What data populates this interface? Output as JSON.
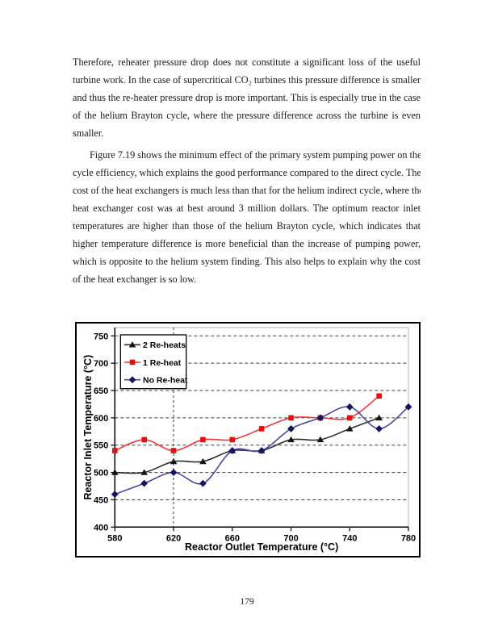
{
  "page": {
    "paragraph1_lines": [
      "Therefore, reheater pressure drop does not constitute a significant loss of the useful",
      "turbine work.  In the case of supercritical CO₂ turbines this pressure difference is smaller",
      "and thus the re-heater pressure drop is more important.  This is especially true in the case",
      "of the helium Brayton cycle, where the pressure difference across the turbine is even",
      "smaller."
    ],
    "paragraph2_lines": [
      "Figure 7.19 shows the minimum effect of the primary system pumping power on the",
      "cycle efficiency, which explains the good performance compared to the direct cycle.  The",
      "cost of the heat exchangers is much less than that for the helium indirect cycle, where the",
      "heat exchanger cost was at best around 3 million dollars.  The optimum reactor inlet",
      "temperatures are higher than those of the helium Brayton cycle, which indicates that",
      "higher temperature difference is more beneficial than the increase of pumping power,",
      "which is opposite to the helium system finding.  This also helps to explain why the cost",
      "of the heat exchanger is so low."
    ],
    "page_number": "179"
  },
  "chart_data": {
    "type": "line",
    "xlabel": "Reactor Outlet Temperature (°C)",
    "ylabel": "Reactor Inlet Temperature (°C)",
    "xlim": [
      580,
      780
    ],
    "ylim": [
      400,
      750
    ],
    "x_ticks": [
      580,
      620,
      660,
      700,
      740,
      780
    ],
    "y_ticks": [
      400,
      450,
      500,
      550,
      600,
      650,
      700,
      750
    ],
    "grid": "horizontal-dashed",
    "vline_x": 620,
    "legend_position": "top-left",
    "series": [
      {
        "name": "2 Re-heats",
        "marker": "triangle",
        "line_color": "#2e2e2e",
        "marker_color": "#141414",
        "x": [
          580,
          600,
          620,
          640,
          660,
          680,
          700,
          720,
          740,
          760
        ],
        "values": [
          500,
          500,
          520,
          520,
          540,
          540,
          560,
          560,
          580,
          600
        ]
      },
      {
        "name": "1 Re-heat",
        "marker": "square",
        "line_color": "#f03636",
        "marker_color": "#e60f0f",
        "x": [
          580,
          600,
          620,
          640,
          660,
          680,
          700,
          720,
          740,
          760
        ],
        "values": [
          540,
          560,
          540,
          560,
          560,
          580,
          600,
          600,
          600,
          640
        ]
      },
      {
        "name": "No Re-heat",
        "marker": "diamond",
        "line_color": "#4a4aa3",
        "marker_color": "#15155e",
        "x": [
          580,
          600,
          620,
          640,
          660,
          680,
          700,
          720,
          740,
          760,
          780
        ],
        "values": [
          460,
          480,
          500,
          480,
          540,
          540,
          580,
          600,
          620,
          580,
          620
        ]
      }
    ],
    "colors": {
      "grid": "#3d3d3d",
      "axis": "#000000",
      "plot_border_light": "#b5b5b5",
      "chart_border": "#000000"
    }
  }
}
